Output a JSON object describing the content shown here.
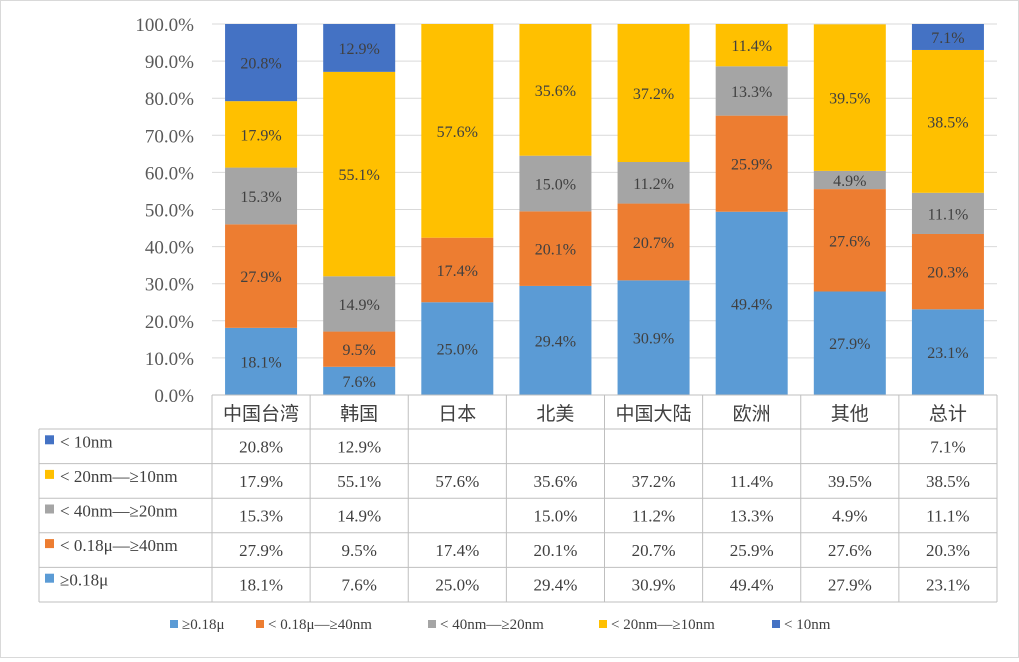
{
  "chart_data": {
    "type": "bar",
    "stacked": true,
    "percent_stacked": true,
    "categories": [
      "中国台湾",
      "韩国",
      "日本",
      "北美",
      "中国大陆",
      "欧洲",
      "其他",
      "总计"
    ],
    "ylim": [
      0,
      100
    ],
    "ytick_labels": [
      "0.0%",
      "10.0%",
      "20.0%",
      "30.0%",
      "40.0%",
      "50.0%",
      "60.0%",
      "70.0%",
      "80.0%",
      "90.0%",
      "100.0%"
    ],
    "grid": true,
    "legend_position": "bottom",
    "data_table": true,
    "series": [
      {
        "name": "≥0.18μ",
        "color": "#5b9bd5",
        "values": [
          18.1,
          7.6,
          25.0,
          29.4,
          30.9,
          49.4,
          27.9,
          23.1
        ],
        "labels": [
          "18.1%",
          "7.6%",
          "25.0%",
          "29.4%",
          "30.9%",
          "49.4%",
          "27.9%",
          "23.1%"
        ]
      },
      {
        "name": "< 0.18μ—≥40nm",
        "color": "#ed7d31",
        "values": [
          27.9,
          9.5,
          17.4,
          20.1,
          20.7,
          25.9,
          27.6,
          20.3
        ],
        "labels": [
          "27.9%",
          "9.5%",
          "17.4%",
          "20.1%",
          "20.7%",
          "25.9%",
          "27.6%",
          "20.3%"
        ]
      },
      {
        "name": "< 40nm—≥20nm",
        "color": "#a5a5a5",
        "values": [
          15.3,
          14.9,
          null,
          15.0,
          11.2,
          13.3,
          4.9,
          11.1
        ],
        "labels": [
          "15.3%",
          "14.9%",
          "",
          "15.0%",
          "11.2%",
          "13.3%",
          "4.9%",
          "11.1%"
        ]
      },
      {
        "name": "< 20nm—≥10nm",
        "color": "#ffc000",
        "values": [
          17.9,
          55.1,
          57.6,
          35.6,
          37.2,
          11.4,
          39.5,
          38.5
        ],
        "labels": [
          "17.9%",
          "55.1%",
          "57.6%",
          "35.6%",
          "37.2%",
          "11.4%",
          "39.5%",
          "38.5%"
        ]
      },
      {
        "name": "< 10nm",
        "color": "#4472c4",
        "values": [
          20.8,
          12.9,
          null,
          null,
          null,
          null,
          null,
          7.1
        ],
        "labels": [
          "20.8%",
          "12.9%",
          "",
          "",
          "",
          "",
          "",
          "7.1%"
        ]
      }
    ],
    "table_row_order": [
      4,
      3,
      2,
      1,
      0
    ]
  }
}
